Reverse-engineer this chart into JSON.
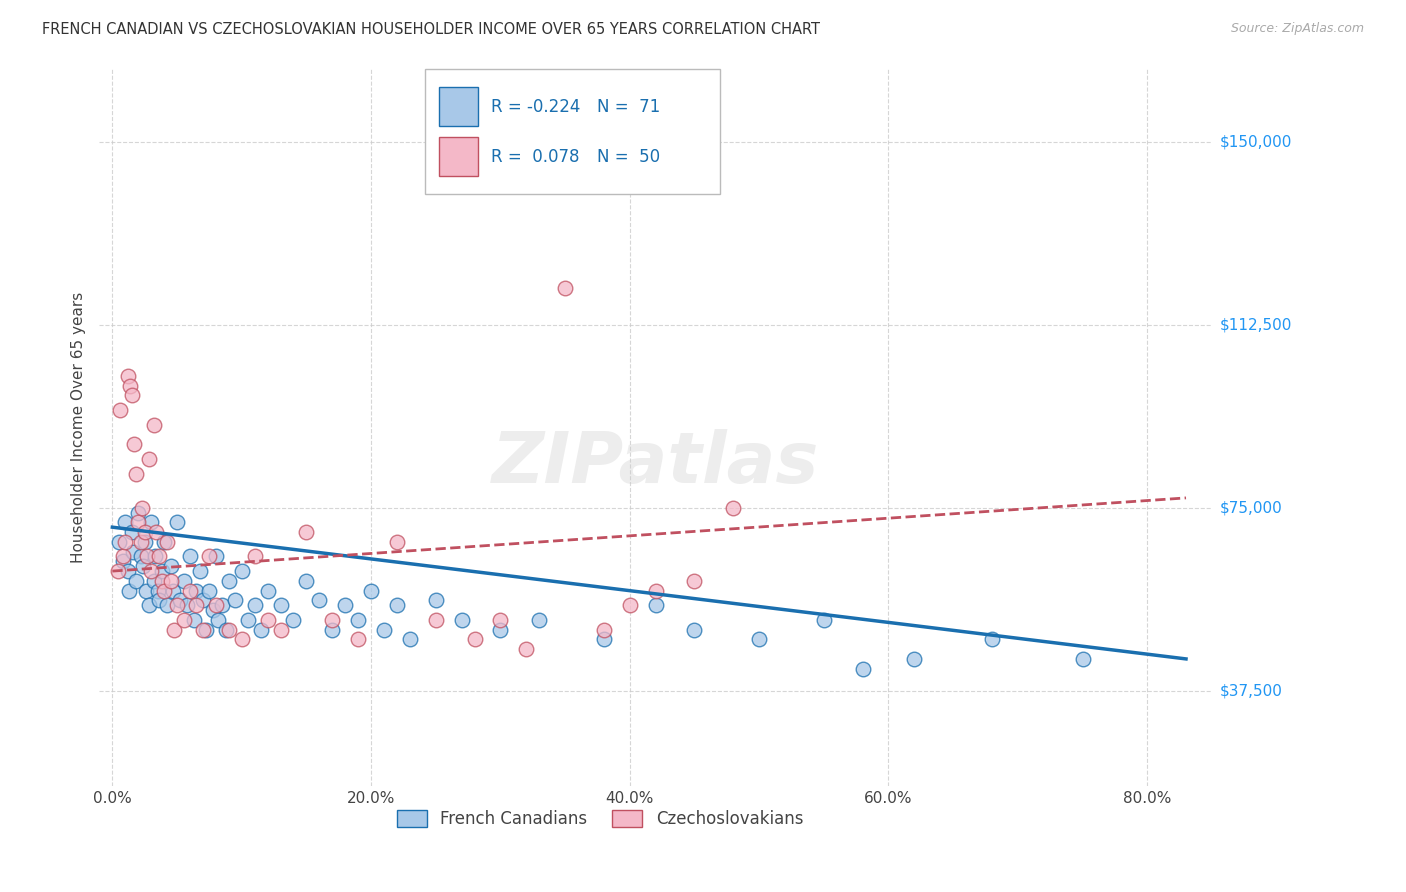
{
  "title": "FRENCH CANADIAN VS CZECHOSLOVAKIAN HOUSEHOLDER INCOME OVER 65 YEARS CORRELATION CHART",
  "source": "Source: ZipAtlas.com",
  "ylabel": "Householder Income Over 65 years",
  "xlabel_ticks": [
    "0.0%",
    "20.0%",
    "40.0%",
    "60.0%",
    "80.0%"
  ],
  "xlabel_values": [
    0.0,
    0.2,
    0.4,
    0.6,
    0.8
  ],
  "ytick_labels": [
    "$37,500",
    "$75,000",
    "$112,500",
    "$150,000"
  ],
  "ytick_values": [
    37500,
    75000,
    112500,
    150000
  ],
  "ylim": [
    18000,
    165000
  ],
  "xlim": [
    -0.01,
    0.85
  ],
  "blue_color": "#a8c8e8",
  "pink_color": "#f4b8c8",
  "blue_line_color": "#1a6faf",
  "pink_line_color": "#c05060",
  "legend_label_blue": "French Canadians",
  "legend_label_pink": "Czechoslovakians",
  "blue_x": [
    0.005,
    0.008,
    0.01,
    0.012,
    0.013,
    0.015,
    0.016,
    0.018,
    0.02,
    0.022,
    0.024,
    0.025,
    0.026,
    0.028,
    0.03,
    0.032,
    0.033,
    0.035,
    0.036,
    0.038,
    0.04,
    0.042,
    0.045,
    0.047,
    0.05,
    0.052,
    0.055,
    0.058,
    0.06,
    0.063,
    0.065,
    0.068,
    0.07,
    0.072,
    0.075,
    0.078,
    0.08,
    0.082,
    0.085,
    0.088,
    0.09,
    0.095,
    0.1,
    0.105,
    0.11,
    0.115,
    0.12,
    0.13,
    0.14,
    0.15,
    0.16,
    0.17,
    0.18,
    0.19,
    0.2,
    0.21,
    0.22,
    0.23,
    0.25,
    0.27,
    0.3,
    0.33,
    0.38,
    0.42,
    0.45,
    0.5,
    0.55,
    0.58,
    0.62,
    0.68,
    0.75
  ],
  "blue_y": [
    68000,
    64000,
    72000,
    62000,
    58000,
    70000,
    66000,
    60000,
    74000,
    65000,
    63000,
    68000,
    58000,
    55000,
    72000,
    60000,
    65000,
    58000,
    56000,
    62000,
    68000,
    55000,
    63000,
    58000,
    72000,
    56000,
    60000,
    55000,
    65000,
    52000,
    58000,
    62000,
    56000,
    50000,
    58000,
    54000,
    65000,
    52000,
    55000,
    50000,
    60000,
    56000,
    62000,
    52000,
    55000,
    50000,
    58000,
    55000,
    52000,
    60000,
    56000,
    50000,
    55000,
    52000,
    58000,
    50000,
    55000,
    48000,
    56000,
    52000,
    50000,
    52000,
    48000,
    55000,
    50000,
    48000,
    52000,
    42000,
    44000,
    48000,
    44000
  ],
  "pink_x": [
    0.004,
    0.006,
    0.008,
    0.01,
    0.012,
    0.014,
    0.015,
    0.017,
    0.018,
    0.02,
    0.022,
    0.023,
    0.025,
    0.027,
    0.028,
    0.03,
    0.032,
    0.034,
    0.036,
    0.038,
    0.04,
    0.042,
    0.045,
    0.048,
    0.05,
    0.055,
    0.06,
    0.065,
    0.07,
    0.075,
    0.08,
    0.09,
    0.1,
    0.11,
    0.12,
    0.13,
    0.15,
    0.17,
    0.19,
    0.22,
    0.25,
    0.28,
    0.3,
    0.32,
    0.35,
    0.38,
    0.4,
    0.42,
    0.45,
    0.48
  ],
  "pink_y": [
    62000,
    95000,
    65000,
    68000,
    102000,
    100000,
    98000,
    88000,
    82000,
    72000,
    68000,
    75000,
    70000,
    65000,
    85000,
    62000,
    92000,
    70000,
    65000,
    60000,
    58000,
    68000,
    60000,
    50000,
    55000,
    52000,
    58000,
    55000,
    50000,
    65000,
    55000,
    50000,
    48000,
    65000,
    52000,
    50000,
    70000,
    52000,
    48000,
    68000,
    52000,
    48000,
    52000,
    46000,
    120000,
    50000,
    55000,
    58000,
    60000,
    75000
  ],
  "blue_trend_x0": 0.0,
  "blue_trend_x1": 0.83,
  "blue_trend_y0": 71000,
  "blue_trend_y1": 44000,
  "pink_trend_x0": 0.0,
  "pink_trend_x1": 0.83,
  "pink_trend_y0": 62000,
  "pink_trend_y1": 77000
}
